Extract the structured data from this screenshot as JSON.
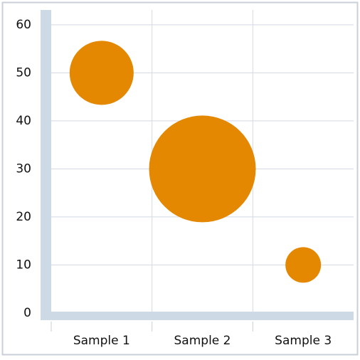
{
  "chart_data": {
    "type": "bubble",
    "categories": [
      "Sample 1",
      "Sample 2",
      "Sample 3"
    ],
    "values": [
      50,
      30,
      10
    ],
    "sizes": [
      45,
      75,
      25
    ],
    "color": "#e38800",
    "ylim": [
      -1.5,
      63.1
    ],
    "yticks": [
      0,
      10,
      20,
      30,
      40,
      50,
      60
    ],
    "grid": true
  }
}
